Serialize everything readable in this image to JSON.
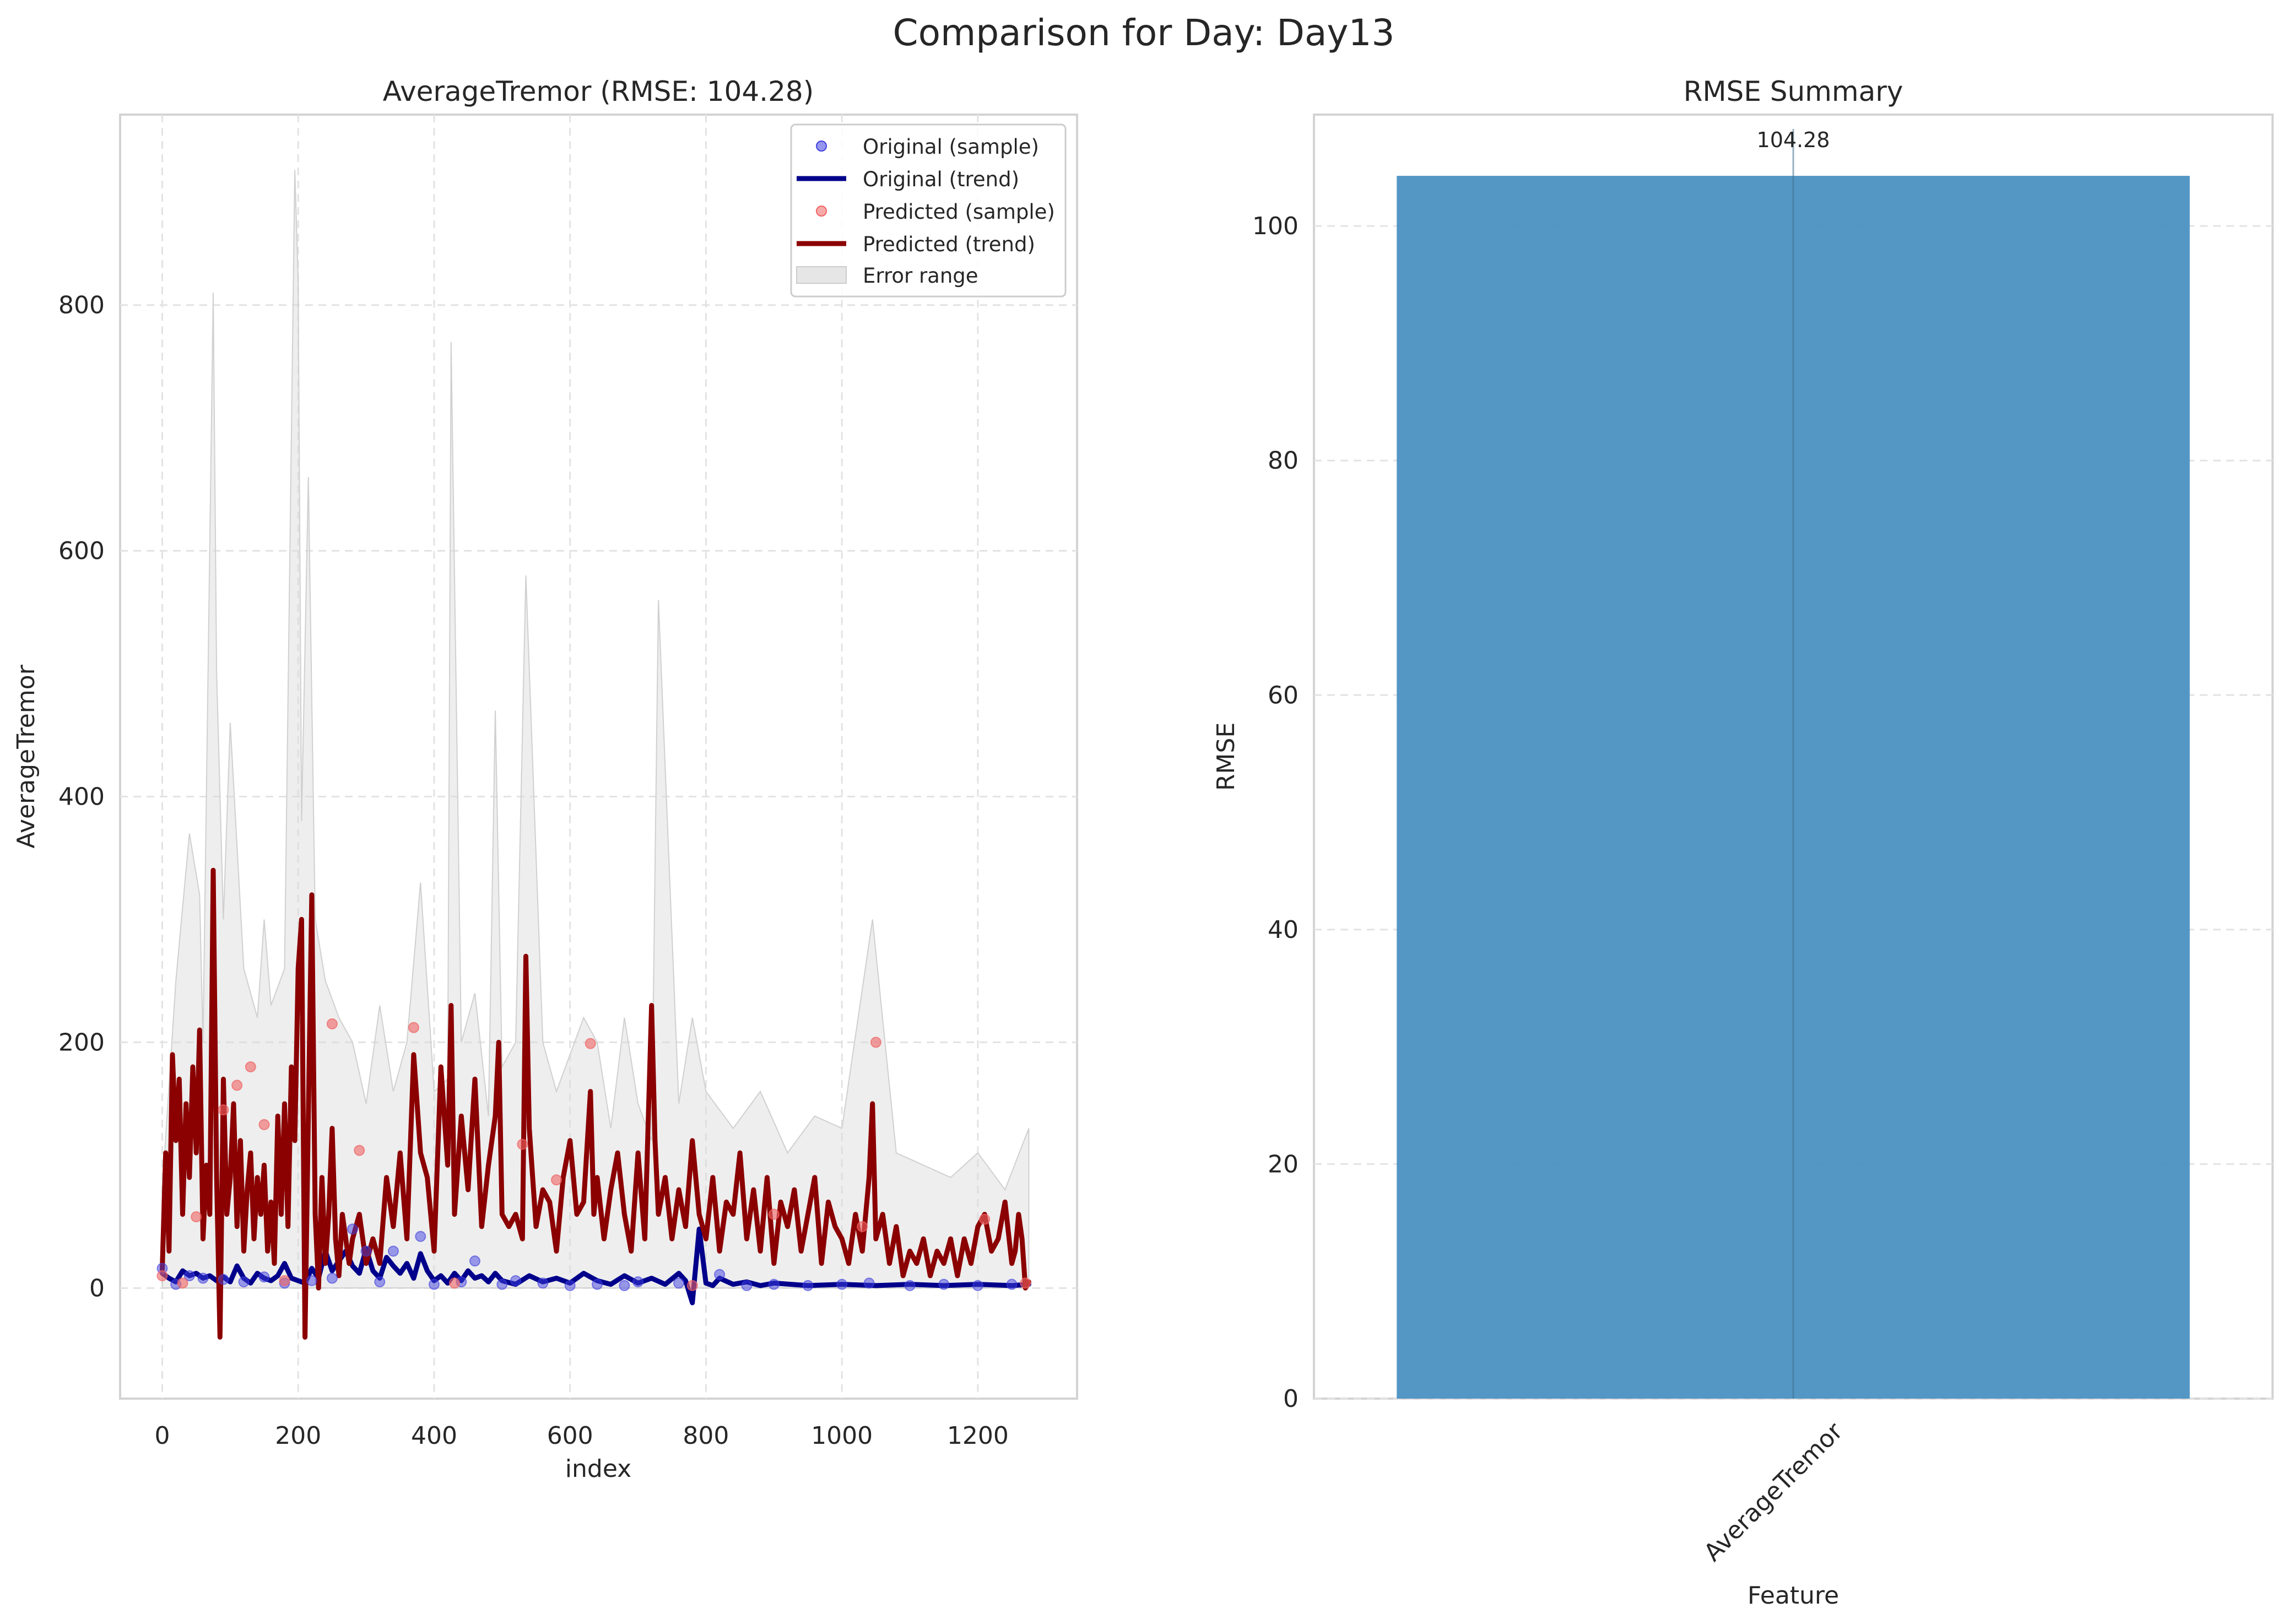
{
  "figure": {
    "suptitle": "Comparison for Day: Day13"
  },
  "chart_data": [
    {
      "type": "line",
      "title": "AverageTremor (RMSE: 104.28)",
      "xlabel": "index",
      "ylabel": "AverageTremor",
      "xlim": [
        -62,
        1346
      ],
      "ylim": [
        -90,
        955
      ],
      "xticks": [
        0,
        200,
        400,
        600,
        800,
        1000,
        1200
      ],
      "yticks": [
        0,
        200,
        400,
        600,
        800
      ],
      "grid": true,
      "legend_position": "top-right",
      "legend": [
        {
          "label": "Original (sample)",
          "kind": "scatter",
          "color": "#4040e0"
        },
        {
          "label": "Original (trend)",
          "kind": "line",
          "color": "#00008b"
        },
        {
          "label": "Predicted (sample)",
          "kind": "scatter",
          "color": "#f06464"
        },
        {
          "label": "Predicted (trend)",
          "kind": "line",
          "color": "#8b0000"
        },
        {
          "label": "Error range",
          "kind": "fill",
          "color": "#d9d9d9"
        }
      ],
      "series": [
        {
          "name": "Original (trend)",
          "color": "#00008b",
          "x": [
            0,
            10,
            20,
            30,
            40,
            50,
            60,
            70,
            80,
            90,
            100,
            110,
            120,
            130,
            140,
            150,
            160,
            170,
            180,
            190,
            200,
            210,
            220,
            230,
            240,
            250,
            260,
            270,
            280,
            290,
            300,
            310,
            320,
            330,
            340,
            350,
            360,
            370,
            380,
            390,
            400,
            410,
            420,
            430,
            440,
            450,
            460,
            470,
            480,
            490,
            500,
            520,
            540,
            560,
            580,
            600,
            620,
            640,
            660,
            680,
            700,
            720,
            740,
            760,
            770,
            780,
            790,
            800,
            810,
            820,
            840,
            860,
            880,
            900,
            950,
            1000,
            1050,
            1100,
            1150,
            1200,
            1250,
            1275
          ],
          "y": [
            12,
            8,
            5,
            14,
            10,
            12,
            8,
            10,
            6,
            9,
            5,
            18,
            8,
            4,
            12,
            8,
            6,
            10,
            20,
            8,
            6,
            4,
            16,
            8,
            30,
            14,
            22,
            30,
            18,
            12,
            32,
            14,
            8,
            25,
            18,
            12,
            20,
            8,
            28,
            14,
            6,
            10,
            4,
            12,
            6,
            14,
            8,
            10,
            5,
            12,
            6,
            3,
            10,
            5,
            8,
            4,
            12,
            6,
            3,
            10,
            4,
            8,
            3,
            12,
            6,
            -12,
            48,
            4,
            2,
            8,
            3,
            5,
            2,
            4,
            2,
            3,
            2,
            3,
            2,
            3,
            2,
            3
          ]
        },
        {
          "name": "Predicted (trend)",
          "color": "#8b0000",
          "x": [
            0,
            5,
            10,
            15,
            20,
            25,
            30,
            35,
            40,
            45,
            50,
            55,
            60,
            65,
            70,
            75,
            80,
            85,
            90,
            95,
            100,
            105,
            110,
            115,
            120,
            125,
            130,
            135,
            140,
            145,
            150,
            155,
            160,
            165,
            170,
            175,
            180,
            185,
            190,
            195,
            200,
            205,
            210,
            215,
            220,
            225,
            230,
            235,
            240,
            245,
            250,
            255,
            260,
            265,
            270,
            275,
            280,
            290,
            300,
            310,
            320,
            330,
            340,
            350,
            360,
            370,
            375,
            380,
            390,
            400,
            410,
            420,
            425,
            430,
            440,
            450,
            460,
            470,
            480,
            490,
            495,
            500,
            510,
            520,
            530,
            535,
            540,
            550,
            560,
            570,
            580,
            590,
            600,
            610,
            620,
            630,
            635,
            640,
            650,
            660,
            670,
            680,
            690,
            700,
            710,
            720,
            725,
            730,
            740,
            750,
            760,
            770,
            780,
            790,
            800,
            810,
            820,
            830,
            840,
            850,
            860,
            870,
            880,
            890,
            900,
            910,
            920,
            930,
            940,
            950,
            960,
            970,
            980,
            990,
            1000,
            1010,
            1020,
            1030,
            1040,
            1045,
            1050,
            1060,
            1070,
            1080,
            1090,
            1100,
            1110,
            1120,
            1130,
            1140,
            1150,
            1160,
            1170,
            1180,
            1190,
            1200,
            1210,
            1220,
            1230,
            1240,
            1250,
            1255,
            1260,
            1265,
            1270,
            1275
          ],
          "y": [
            15,
            110,
            30,
            190,
            120,
            170,
            60,
            150,
            90,
            180,
            110,
            210,
            40,
            100,
            60,
            340,
            90,
            -40,
            170,
            60,
            90,
            150,
            50,
            120,
            30,
            80,
            110,
            40,
            90,
            60,
            100,
            30,
            70,
            20,
            140,
            60,
            150,
            50,
            180,
            120,
            260,
            300,
            -40,
            140,
            320,
            60,
            0,
            90,
            20,
            60,
            130,
            40,
            10,
            60,
            40,
            20,
            40,
            60,
            20,
            40,
            20,
            90,
            50,
            110,
            40,
            190,
            150,
            110,
            90,
            30,
            180,
            100,
            230,
            60,
            140,
            80,
            170,
            50,
            100,
            140,
            200,
            60,
            50,
            60,
            40,
            270,
            130,
            50,
            80,
            70,
            30,
            90,
            120,
            60,
            70,
            160,
            60,
            90,
            40,
            80,
            110,
            60,
            30,
            110,
            40,
            230,
            120,
            60,
            90,
            40,
            80,
            50,
            120,
            60,
            40,
            90,
            30,
            70,
            60,
            110,
            40,
            80,
            30,
            90,
            20,
            70,
            50,
            80,
            30,
            60,
            90,
            20,
            70,
            50,
            40,
            20,
            60,
            30,
            90,
            150,
            40,
            60,
            20,
            50,
            10,
            30,
            20,
            40,
            10,
            30,
            20,
            40,
            10,
            40,
            20,
            50,
            60,
            30,
            40,
            70,
            20,
            30,
            60,
            40,
            0,
            5
          ]
        }
      ],
      "original_samples": [
        [
          0,
          16
        ],
        [
          20,
          3
        ],
        [
          40,
          10
        ],
        [
          60,
          8
        ],
        [
          90,
          7
        ],
        [
          120,
          5
        ],
        [
          150,
          9
        ],
        [
          180,
          4
        ],
        [
          220,
          6
        ],
        [
          250,
          8
        ],
        [
          280,
          48
        ],
        [
          300,
          30
        ],
        [
          320,
          5
        ],
        [
          340,
          30
        ],
        [
          380,
          42
        ],
        [
          400,
          3
        ],
        [
          440,
          5
        ],
        [
          460,
          22
        ],
        [
          500,
          3
        ],
        [
          520,
          6
        ],
        [
          560,
          4
        ],
        [
          600,
          2
        ],
        [
          640,
          3
        ],
        [
          680,
          2
        ],
        [
          700,
          5
        ],
        [
          760,
          4
        ],
        [
          820,
          11
        ],
        [
          860,
          2
        ],
        [
          900,
          3
        ],
        [
          950,
          2
        ],
        [
          1000,
          3
        ],
        [
          1040,
          4
        ],
        [
          1100,
          2
        ],
        [
          1150,
          3
        ],
        [
          1200,
          2
        ],
        [
          1250,
          3
        ]
      ],
      "predicted_samples": [
        [
          0,
          10
        ],
        [
          30,
          4
        ],
        [
          50,
          58
        ],
        [
          90,
          145
        ],
        [
          110,
          165
        ],
        [
          130,
          180
        ],
        [
          150,
          133
        ],
        [
          180,
          6
        ],
        [
          250,
          215
        ],
        [
          290,
          112
        ],
        [
          370,
          212
        ],
        [
          430,
          4
        ],
        [
          530,
          117
        ],
        [
          580,
          88
        ],
        [
          630,
          199
        ],
        [
          780,
          2
        ],
        [
          900,
          60
        ],
        [
          1030,
          50
        ],
        [
          1050,
          200
        ],
        [
          1210,
          56
        ],
        [
          1270,
          4
        ]
      ],
      "error_range": {
        "x": [
          0,
          20,
          40,
          55,
          60,
          75,
          80,
          90,
          100,
          120,
          140,
          150,
          160,
          180,
          195,
          200,
          205,
          215,
          225,
          240,
          260,
          280,
          300,
          320,
          340,
          360,
          380,
          400,
          420,
          425,
          440,
          460,
          480,
          490,
          500,
          520,
          535,
          560,
          580,
          600,
          620,
          640,
          660,
          680,
          700,
          720,
          730,
          760,
          780,
          800,
          840,
          880,
          920,
          960,
          1000,
          1045,
          1080,
          1120,
          1160,
          1200,
          1240,
          1275
        ],
        "upper": [
          80,
          250,
          370,
          320,
          200,
          810,
          500,
          300,
          460,
          260,
          220,
          300,
          230,
          260,
          910,
          820,
          380,
          660,
          300,
          250,
          220,
          200,
          150,
          230,
          160,
          200,
          330,
          160,
          170,
          770,
          200,
          240,
          140,
          470,
          180,
          200,
          580,
          200,
          160,
          190,
          220,
          200,
          130,
          220,
          150,
          120,
          560,
          150,
          220,
          160,
          130,
          160,
          110,
          140,
          130,
          300,
          110,
          100,
          90,
          110,
          80,
          130
        ],
        "lower": [
          0,
          0,
          0,
          0,
          0,
          0,
          0,
          0,
          0,
          0,
          0,
          0,
          0,
          0,
          0,
          0,
          0,
          0,
          0,
          0,
          0,
          0,
          0,
          0,
          0,
          0,
          0,
          0,
          0,
          0,
          0,
          0,
          0,
          0,
          0,
          0,
          0,
          0,
          0,
          0,
          0,
          0,
          0,
          0,
          0,
          0,
          0,
          0,
          0,
          0,
          0,
          0,
          0,
          0,
          0,
          0,
          0,
          0,
          0,
          0,
          0,
          0
        ]
      }
    },
    {
      "type": "bar",
      "title": "RMSE Summary",
      "xlabel": "Feature",
      "ylabel": "RMSE",
      "categories": [
        "AverageTremor"
      ],
      "values": [
        104.28
      ],
      "value_labels": [
        "104.28"
      ],
      "color": "#4b91c2",
      "ylim": [
        0,
        109.5
      ],
      "yticks": [
        0,
        20,
        40,
        60,
        80,
        100
      ],
      "grid": true
    }
  ]
}
